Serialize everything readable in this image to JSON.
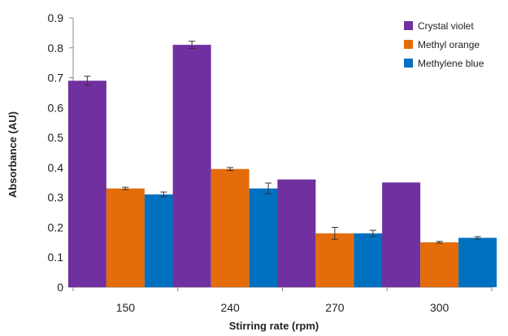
{
  "chart_data": {
    "type": "bar",
    "title": "",
    "xlabel": "Stirring rate (rpm)",
    "ylabel": "Absorbance (AU)",
    "categories": [
      "150",
      "240",
      "270",
      "300"
    ],
    "ylim": [
      0,
      0.9
    ],
    "yticks": [
      "0",
      "0.1",
      "0.2",
      "0.3",
      "0.4",
      "0.5",
      "0.6",
      "0.7",
      "0.8",
      "0.9"
    ],
    "grid": false,
    "legend_position": "top-right",
    "series": [
      {
        "name": "Crystal violet",
        "color": "#7030A0",
        "values": [
          0.69,
          0.81,
          0.36,
          0.35
        ],
        "errors": [
          0.015,
          0.012,
          0.0,
          0.0
        ]
      },
      {
        "name": "Methyl orange",
        "color": "#E46C0A",
        "values": [
          0.33,
          0.395,
          0.18,
          0.15
        ],
        "errors": [
          0.004,
          0.005,
          0.02,
          0.003
        ]
      },
      {
        "name": "Methylene blue",
        "color": "#0070C0",
        "values": [
          0.31,
          0.33,
          0.18,
          0.165
        ],
        "errors": [
          0.008,
          0.018,
          0.01,
          0.004
        ]
      }
    ]
  }
}
